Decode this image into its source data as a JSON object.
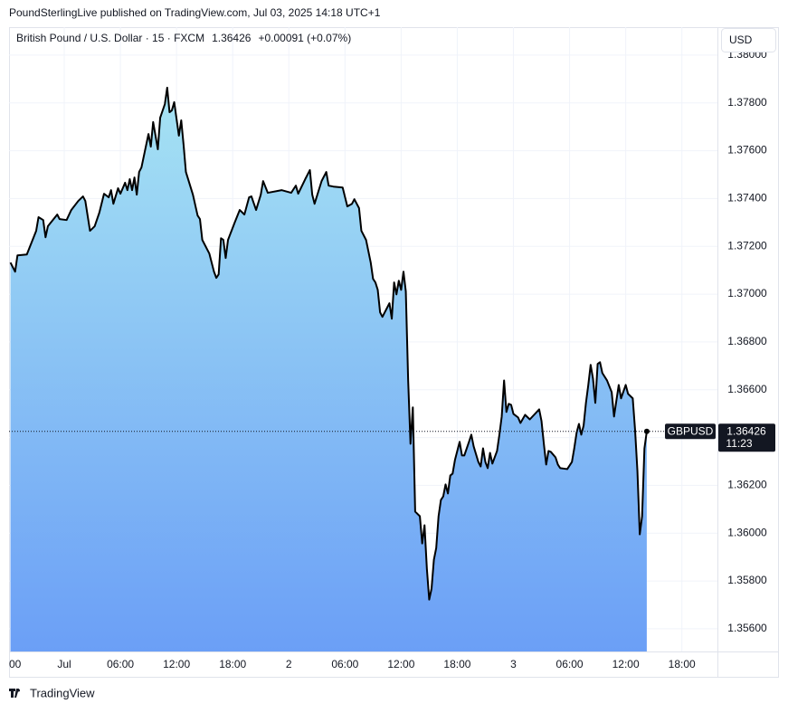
{
  "header": {
    "publisher": "PoundSterlingLive published on TradingView.com, Jul 03, 2025 14:18 UTC+1"
  },
  "footer": {
    "brand": "TradingView"
  },
  "chart_data": {
    "type": "area",
    "title": "British Pound / U.S. Dollar · 15 · FXCM",
    "change": "+0.00091 (+0.07%)",
    "currency": "USD",
    "symbol": "GBPUSD",
    "countdown": "11:23",
    "line_color": "#000000",
    "fill_top": "#a6e3f3",
    "fill_bottom": "#6b9ff6",
    "grid": true,
    "xlim": [
      -5.9,
      69.8
    ],
    "ylim": [
      1.35505,
      1.38117
    ],
    "xticks": [
      {
        "value": -6,
        "label": "00"
      },
      {
        "value": 0,
        "label": "Jul"
      },
      {
        "value": 6,
        "label": "06:00"
      },
      {
        "value": 12,
        "label": "12:00"
      },
      {
        "value": 18,
        "label": "18:00"
      },
      {
        "value": 24,
        "label": "2"
      },
      {
        "value": 30,
        "label": "06:00"
      },
      {
        "value": 36,
        "label": "12:00"
      },
      {
        "value": 42,
        "label": "18:00"
      },
      {
        "value": 48,
        "label": "3"
      },
      {
        "value": 54,
        "label": "06:00"
      },
      {
        "value": 60,
        "label": "12:00"
      },
      {
        "value": 66,
        "label": "18:00"
      }
    ],
    "yticks": [
      {
        "value": 1.356,
        "label": "1.35600"
      },
      {
        "value": 1.358,
        "label": "1.35800"
      },
      {
        "value": 1.36,
        "label": "1.36000"
      },
      {
        "value": 1.362,
        "label": "1.36200"
      },
      {
        "value": 1.364,
        "label": "1.36400"
      },
      {
        "value": 1.366,
        "label": "1.36600"
      },
      {
        "value": 1.368,
        "label": "1.36800"
      },
      {
        "value": 1.37,
        "label": "1.37000"
      },
      {
        "value": 1.372,
        "label": "1.37200"
      },
      {
        "value": 1.374,
        "label": "1.37400"
      },
      {
        "value": 1.376,
        "label": "1.37600"
      },
      {
        "value": 1.378,
        "label": "1.37800"
      },
      {
        "value": 1.38,
        "label": "1.38000"
      }
    ],
    "x": [
      -5.75,
      -5.25,
      -5,
      -4,
      -3,
      -2.75,
      -2.25,
      -2,
      -1.75,
      -0.75,
      -0.5,
      0.25,
      0.75,
      1.5,
      2,
      2.25,
      2.75,
      3.25,
      3.75,
      4.25,
      4.75,
      5,
      5.25,
      5.75,
      6,
      6.5,
      6.75,
      7,
      7.25,
      7.5,
      7.75,
      8,
      8.25,
      9,
      9.25,
      9.5,
      10,
      10.25,
      10.75,
      11,
      11.25,
      11.5,
      11.75,
      12.25,
      12.5,
      12.75,
      13,
      13.75,
      14.25,
      14.5,
      14.75,
      15.5,
      16,
      16.25,
      16.5,
      16.75,
      17,
      17.25,
      17.5,
      18.25,
      18.75,
      19.25,
      19.75,
      20,
      20.5,
      21,
      21.25,
      21.75,
      23.25,
      24.25,
      24.75,
      25,
      25.75,
      26.25,
      26.5,
      26.75,
      27.5,
      28,
      28.25,
      28.75,
      29.75,
      30.25,
      30.75,
      31,
      31.5,
      31.75,
      32.25,
      32.75,
      33,
      33.25,
      33.5,
      33.75,
      34,
      34.75,
      35,
      35.25,
      35.5,
      35.75,
      36,
      36.25,
      36.5,
      36.75,
      37,
      37.25,
      37.5,
      38,
      38.25,
      38.5,
      38.75,
      39,
      39.25,
      39.5,
      39.75,
      40,
      40.25,
      40.5,
      40.75,
      41,
      41.25,
      41.5,
      41.75,
      42.25,
      42.5,
      42.75,
      43.25,
      43.5,
      43.75,
      44.25,
      44.5,
      44.75,
      45,
      45.25,
      45.5,
      45.75,
      46.25,
      46.5,
      46.75,
      47,
      47.25,
      47.5,
      47.75,
      48,
      48.5,
      48.75,
      49.25,
      49.75,
      50.75,
      51,
      51.25,
      51.5,
      51.75,
      52,
      52.5,
      52.75,
      53,
      53.75,
      54.25,
      54.5,
      54.75,
      55,
      55.25,
      55.5,
      55.75,
      56,
      56.25,
      56.5,
      56.75,
      57,
      57.25,
      57.5,
      58,
      58.5,
      58.75,
      59.25,
      59.5,
      60,
      60.25,
      60.75,
      61,
      61.25,
      61.5,
      61.75,
      62,
      62.25
    ],
    "values": [
      1.37132,
      1.37094,
      1.37162,
      1.37166,
      1.37265,
      1.37322,
      1.3731,
      1.37238,
      1.37284,
      1.37333,
      1.37314,
      1.3731,
      1.37352,
      1.3739,
      1.37409,
      1.3739,
      1.37265,
      1.37284,
      1.37341,
      1.3742,
      1.37405,
      1.37435,
      1.37378,
      1.37443,
      1.3742,
      1.37466,
      1.37435,
      1.37481,
      1.37435,
      1.37488,
      1.37416,
      1.37511,
      1.3753,
      1.3767,
      1.37617,
      1.3772,
      1.37606,
      1.37738,
      1.37795,
      1.37864,
      1.37761,
      1.37769,
      1.37803,
      1.37663,
      1.37727,
      1.37625,
      1.37511,
      1.37416,
      1.37329,
      1.37314,
      1.37227,
      1.3717,
      1.37094,
      1.37068,
      1.37083,
      1.37234,
      1.37227,
      1.37151,
      1.37227,
      1.37303,
      1.37352,
      1.37333,
      1.37405,
      1.37409,
      1.37352,
      1.37416,
      1.37473,
      1.37424,
      1.37435,
      1.37424,
      1.37454,
      1.3742,
      1.37481,
      1.37519,
      1.37416,
      1.37378,
      1.37473,
      1.37511,
      1.37454,
      1.3745,
      1.37446,
      1.37367,
      1.37378,
      1.37397,
      1.3736,
      1.37265,
      1.37227,
      1.37132,
      1.37064,
      1.37049,
      1.37018,
      1.36924,
      1.36905,
      1.36962,
      1.36897,
      1.37049,
      1.36999,
      1.37056,
      1.37018,
      1.37094,
      1.37011,
      1.36639,
      1.36374,
      1.36526,
      1.3609,
      1.36071,
      1.35957,
      1.36033,
      1.35851,
      1.35722,
      1.35768,
      1.35889,
      1.35938,
      1.36071,
      1.36139,
      1.36154,
      1.36204,
      1.36166,
      1.36241,
      1.36249,
      1.36306,
      1.36382,
      1.36325,
      1.36325,
      1.36382,
      1.36412,
      1.36363,
      1.36298,
      1.36279,
      1.36355,
      1.36298,
      1.36272,
      1.36336,
      1.36291,
      1.36344,
      1.36412,
      1.36488,
      1.36639,
      1.36507,
      1.36541,
      1.36537,
      1.36499,
      1.36484,
      1.36461,
      1.36495,
      1.36476,
      1.36518,
      1.36469,
      1.36374,
      1.36287,
      1.36344,
      1.3634,
      1.36317,
      1.36287,
      1.36272,
      1.36268,
      1.36298,
      1.36355,
      1.3642,
      1.36457,
      1.36412,
      1.3645,
      1.36545,
      1.3662,
      1.36704,
      1.36647,
      1.36545,
      1.36708,
      1.36715,
      1.3667,
      1.36639,
      1.3659,
      1.36488,
      1.3662,
      1.36564,
      1.3662,
      1.36583,
      1.36564,
      1.36431,
      1.3626,
      1.35995,
      1.36071,
      1.36355,
      1.36426
    ]
  }
}
